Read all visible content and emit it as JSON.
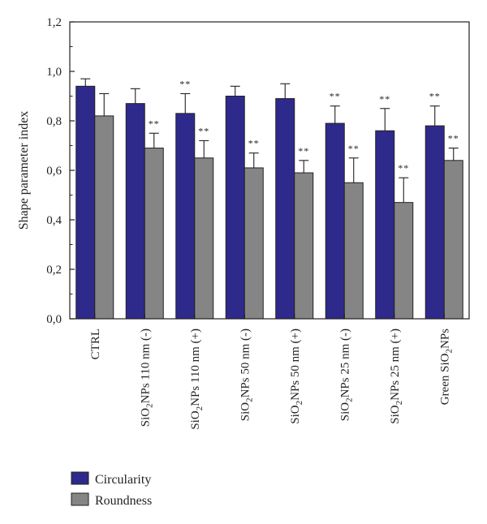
{
  "chart_data": {
    "type": "bar",
    "title": "",
    "xlabel": "",
    "ylabel": "Shape parameter index",
    "ylim": [
      0,
      1.2
    ],
    "yticks": [
      "0,0",
      "0,2",
      "0,4",
      "0,6",
      "0,8",
      "1,0",
      "1,2"
    ],
    "grid": false,
    "legend_position": "bottom-left",
    "categories": [
      {
        "pre": "",
        "sub": "",
        "post": "CTRL"
      },
      {
        "pre": "SiO",
        "sub": "2",
        "post": "NPs 110 nm (-)"
      },
      {
        "pre": "SiO",
        "sub": "2",
        "post": "NPs 110 nm (+)"
      },
      {
        "pre": "SiO",
        "sub": "2",
        "post": "NPs 50 nm (-)"
      },
      {
        "pre": "SiO",
        "sub": "2",
        "post": "NPs 50 nm (+)"
      },
      {
        "pre": "SiO",
        "sub": "2",
        "post": "NPs 25 nm (-)"
      },
      {
        "pre": "SiO",
        "sub": "2",
        "post": "NPs 25 nm (+)"
      },
      {
        "pre": "Green SiO",
        "sub": "2",
        "post": "NPs"
      }
    ],
    "series": [
      {
        "name": "Circularity",
        "color": "#2e2a8c",
        "values": [
          0.94,
          0.87,
          0.83,
          0.9,
          0.89,
          0.79,
          0.76,
          0.78
        ],
        "errors": [
          0.03,
          0.06,
          0.08,
          0.04,
          0.06,
          0.07,
          0.09,
          0.08
        ],
        "significance": [
          "",
          "",
          "**",
          "",
          "",
          "**",
          "**",
          "**"
        ]
      },
      {
        "name": "Roundness",
        "color": "#858585",
        "values": [
          0.82,
          0.69,
          0.65,
          0.61,
          0.59,
          0.55,
          0.47,
          0.64
        ],
        "errors": [
          0.09,
          0.06,
          0.07,
          0.06,
          0.05,
          0.1,
          0.1,
          0.05
        ],
        "significance": [
          "",
          "**",
          "**",
          "**",
          "**",
          "**",
          "**",
          "**"
        ]
      }
    ]
  }
}
